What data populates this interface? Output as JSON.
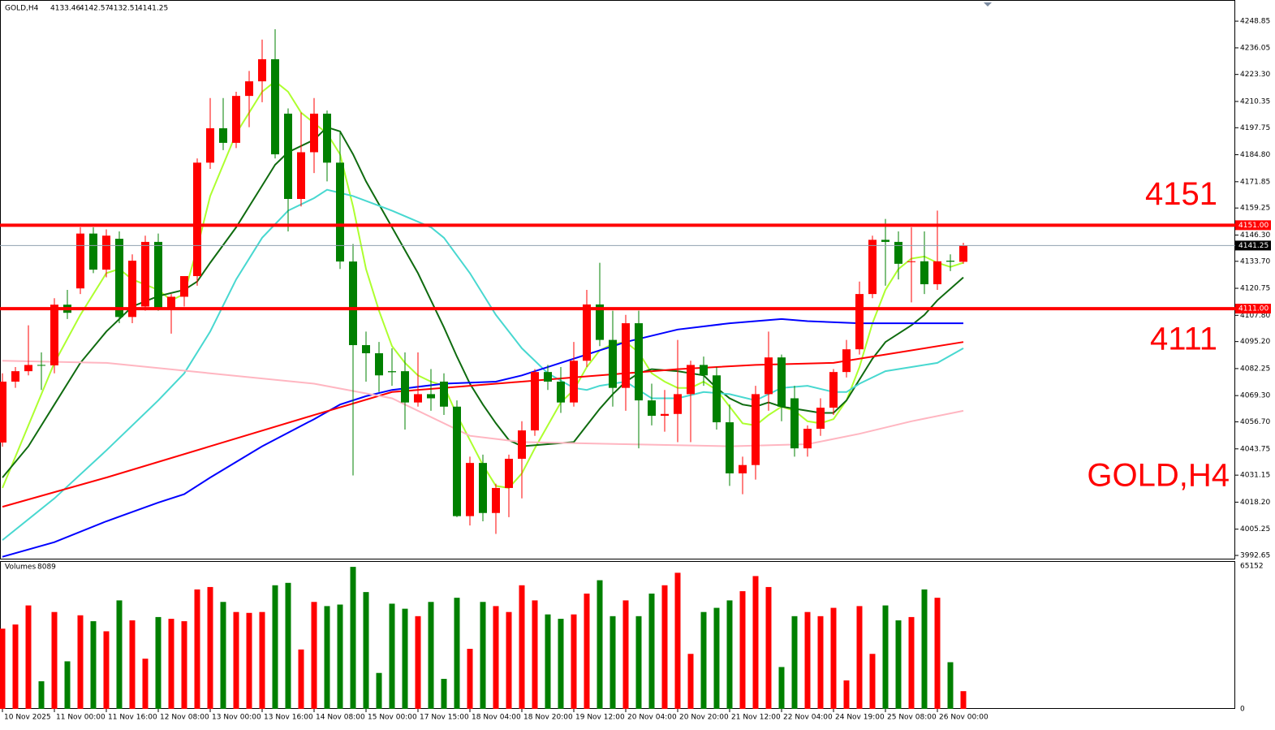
{
  "chart_data": {
    "type": "candlestick",
    "symbol": "GOLD,H4",
    "up_color": "#ff0000",
    "down_color": "#008000",
    "ylim": [
      3991.1,
      4259.0
    ],
    "yticks": [
      4248.85,
      4236.05,
      {
        "value": 4223.3,
        "label": "4223.30"
      },
      4210.35,
      4197.75,
      {
        "value": 4184.8,
        "label": "4184.80"
      },
      4171.85,
      4159.25,
      {
        "value": 4146.3,
        "label": "4146.30"
      },
      {
        "value": 4133.7,
        "label": "4133.70"
      },
      4120.75,
      {
        "value": 4107.8,
        "label": "4107.80"
      },
      {
        "value": 4095.2,
        "label": "4095.20"
      },
      4082.25,
      {
        "value": 4069.3,
        "label": "4069.30"
      },
      {
        "value": 4056.7,
        "label": "4056.70"
      },
      4043.75,
      4031.15,
      {
        "value": 4018.2,
        "label": "4018.20"
      },
      4005.25,
      3992.65
    ],
    "xticks": [
      {
        "value": 0,
        "label": "10 Nov 2025"
      },
      {
        "value": 4,
        "label": "11 Nov 00:00"
      },
      {
        "value": 8,
        "label": "11 Nov 16:00"
      },
      {
        "value": 12,
        "label": "12 Nov 08:00"
      },
      {
        "value": 16,
        "label": "13 Nov 00:00"
      },
      {
        "value": 20,
        "label": "13 Nov 16:00"
      },
      {
        "value": 24,
        "label": "14 Nov 08:00"
      },
      {
        "value": 28,
        "label": "15 Nov 00:00"
      },
      {
        "value": 32,
        "label": "17 Nov 15:00"
      },
      {
        "value": 36,
        "label": "18 Nov 04:00"
      },
      {
        "value": 40,
        "label": "18 Nov 20:00"
      },
      {
        "value": 44,
        "label": "19 Nov 12:00"
      },
      {
        "value": 48,
        "label": "20 Nov 04:00"
      },
      {
        "value": 52,
        "label": "20 Nov 20:00"
      },
      {
        "value": 56,
        "label": "21 Nov 12:00"
      },
      {
        "value": 60,
        "label": "22 Nov 04:00"
      },
      {
        "value": 64,
        "label": "24 Nov 19:00"
      },
      {
        "value": 68,
        "label": "25 Nov 08:00"
      },
      {
        "value": 72,
        "label": "26 Nov 00:00"
      }
    ],
    "candles": {
      "open": [
        4046.8,
        4076,
        4081,
        4084,
        4083.8,
        4112.9,
        4120.7,
        4147,
        4129.7,
        4144.5,
        4107,
        4112,
        4143,
        4111.5,
        4116.7,
        4126.6,
        4181,
        4197.5,
        4190.5,
        4213,
        4220,
        4230.6,
        4204.5,
        4163.6,
        4186,
        4204.5,
        4181,
        4133.6,
        4093.5,
        4089.6,
        4081,
        4081,
        4066,
        4070,
        4076,
        4064,
        4011.5,
        4037,
        4013,
        4025,
        4039,
        4052.6,
        4080.6,
        4076,
        4066,
        4086,
        4113,
        4096,
        4073,
        4104,
        4067,
        4059.6,
        4060.5,
        4070,
        4084,
        4079,
        4056.5,
        4032,
        4036,
        4070,
        4087.6,
        4068,
        4044,
        4053.4,
        4063.5,
        4080.6,
        4091.5,
        4118,
        4144,
        4143,
        4133.3,
        4133.7,
        4122.7,
        4134,
        4133.46
      ],
      "high": [
        4080,
        4083,
        4103,
        4090,
        4116,
        4120,
        4150,
        4150,
        4149,
        4148,
        4137,
        4146,
        4147,
        4118,
        4125,
        4183,
        4212,
        4212,
        4215,
        4225,
        4240,
        4245,
        4207,
        4205,
        4212,
        4206,
        4196,
        4142,
        4100,
        4095,
        4092,
        4090,
        4090,
        4082,
        4080,
        4067,
        4040,
        4041,
        4027,
        4041,
        4057,
        4082,
        4084,
        4083,
        4095,
        4120,
        4133,
        4110,
        4108,
        4110,
        4075,
        4072,
        4096,
        4086,
        4088,
        4083,
        4065,
        4040,
        4074,
        4100,
        4089,
        4074,
        4055,
        4068,
        4082,
        4096,
        4124,
        4146,
        4154,
        4148,
        4150,
        4148,
        4158,
        4137,
        4142.57
      ],
      "low": [
        4044.8,
        4073,
        4079,
        4072,
        4080,
        4106,
        4118,
        4128,
        4126,
        4104,
        4104,
        4110,
        4110,
        4099,
        4112,
        4122,
        4178,
        4187,
        4188,
        4198,
        4210,
        4183,
        4148,
        4160,
        4176,
        4172,
        4130,
        4031,
        4076,
        4071,
        4074,
        4053,
        4064,
        4062,
        4060,
        4011,
        4007,
        4009,
        4003,
        4011,
        4020,
        4050,
        4072,
        4061,
        4064,
        4083,
        4093,
        4064,
        4062,
        4044,
        4055,
        4052,
        4047,
        4047,
        4074,
        4053,
        4026,
        4022,
        4029,
        4062,
        4057,
        4040,
        4040,
        4050,
        4060,
        4078,
        4089,
        4116,
        4122,
        4125,
        4114,
        4118,
        4120,
        4129,
        4132.51
      ],
      "close": [
        4076,
        4081,
        4084,
        4083.8,
        4112.9,
        4109,
        4147,
        4129.7,
        4146,
        4107,
        4134,
        4143,
        4111.5,
        4116.7,
        4126.6,
        4181,
        4197.5,
        4190.5,
        4213,
        4220,
        4230.6,
        4185,
        4163.6,
        4186,
        4204.5,
        4181,
        4133.6,
        4093.5,
        4089.6,
        4079,
        4080.5,
        4066,
        4070,
        4068,
        4064,
        4011.5,
        4037,
        4013,
        4025,
        4039,
        4052.6,
        4080.6,
        4076,
        4066,
        4086,
        4113,
        4096,
        4073,
        4104,
        4067,
        4059.6,
        4060.5,
        4070,
        4084,
        4079,
        4056.5,
        4032,
        4036,
        4070,
        4087.6,
        4064,
        4044,
        4053.4,
        4063.5,
        4080.6,
        4091.5,
        4118,
        4144,
        4143,
        4132.5,
        4133.7,
        4122.7,
        4133.7,
        4133.5,
        4141.25
      ]
    },
    "moving_averages": [
      {
        "color": "#adff2f",
        "x": [
          0,
          2,
          4,
          6,
          8,
          9,
          10,
          12,
          13,
          14,
          15,
          16,
          17,
          18,
          19,
          20,
          21,
          22,
          23,
          24,
          25,
          26,
          27,
          28,
          29,
          30,
          31,
          32,
          33,
          34,
          35,
          36,
          37,
          38,
          39,
          40,
          41,
          42,
          43,
          44,
          45,
          46,
          47,
          48,
          49,
          50,
          51,
          52,
          53,
          54,
          55,
          56,
          57,
          58,
          59,
          60,
          61,
          62,
          63,
          64,
          65,
          66,
          67,
          68,
          69,
          70,
          71,
          72,
          73,
          74
        ],
        "values": [
          4025,
          4055,
          4085,
          4108,
          4128,
          4130,
          4125,
          4120,
          4115,
          4118,
          4140,
          4165,
          4180,
          4195,
          4205,
          4215,
          4220,
          4215,
          4205,
          4200,
          4195,
          4185,
          4160,
          4130,
          4110,
          4093,
          4085,
          4079,
          4076,
          4074,
          4060,
          4048,
          4036,
          4026,
          4025,
          4032,
          4044,
          4055,
          4066,
          4072,
          4083,
          4091,
          4094,
          4095,
          4090,
          4080,
          4076,
          4073,
          4073,
          4076,
          4072,
          4064,
          4056,
          4055,
          4060,
          4064,
          4062,
          4057,
          4056,
          4058,
          4067,
          4083,
          4104,
          4120,
          4130,
          4135,
          4136,
          4133,
          4131,
          4133
        ]
      },
      {
        "color": "#0f6b0f",
        "x": [
          0,
          2,
          4,
          6,
          8,
          10,
          12,
          14,
          15,
          16,
          18,
          20,
          21,
          22,
          24,
          25,
          26,
          27,
          28,
          30,
          32,
          33,
          34,
          35,
          36,
          37,
          38,
          39,
          40,
          42,
          44,
          45,
          46,
          47,
          48,
          49,
          50,
          52,
          53,
          54,
          55,
          56,
          57,
          58,
          59,
          60,
          62,
          63,
          64,
          65,
          66,
          67,
          68,
          70,
          71,
          72,
          74
        ],
        "values": [
          4030,
          4045,
          4065,
          4085,
          4100,
          4112,
          4117,
          4120,
          4124,
          4133,
          4150,
          4170,
          4180,
          4186,
          4192,
          4198,
          4196,
          4185,
          4172,
          4150,
          4128,
          4115,
          4102,
          4088,
          4075,
          4065,
          4056,
          4048,
          4045,
          4046,
          4047,
          4055,
          4063,
          4070,
          4076,
          4080,
          4082,
          4081,
          4080,
          4079,
          4073,
          4068,
          4065,
          4064,
          4066,
          4064,
          4062,
          4061,
          4061,
          4067,
          4077,
          4087,
          4095,
          4103,
          4108,
          4115,
          4126
        ]
      },
      {
        "color": "#48d8d0",
        "x": [
          0,
          4,
          8,
          12,
          14,
          16,
          18,
          20,
          22,
          24,
          25,
          27,
          30,
          33,
          34,
          36,
          38,
          40,
          42,
          44,
          45,
          46,
          48,
          50,
          52,
          54,
          56,
          58,
          60,
          62,
          64,
          65,
          66,
          68,
          70,
          72,
          74
        ],
        "values": [
          4000,
          4020,
          4043,
          4067,
          4080,
          4100,
          4125,
          4145,
          4158,
          4164,
          4168,
          4165,
          4158,
          4150,
          4145,
          4128,
          4108,
          4092,
          4080,
          4073,
          4072,
          4074,
          4076,
          4068,
          4068,
          4071,
          4070,
          4067,
          4073,
          4074,
          4071,
          4071,
          4075,
          4081,
          4083,
          4085,
          4092
        ]
      },
      {
        "color": "#0000ff",
        "x": [
          0,
          4,
          8,
          12,
          14,
          16,
          20,
          24,
          26,
          28,
          30,
          34,
          38,
          40,
          44,
          48,
          52,
          56,
          58,
          60,
          62,
          66,
          70,
          74
        ],
        "values": [
          3992,
          3999,
          4009,
          4018,
          4022,
          4030,
          4045,
          4058,
          4065,
          4069,
          4072,
          4075,
          4076,
          4079,
          4087,
          4095,
          4101,
          4104,
          4105,
          4106,
          4105,
          4104,
          4104,
          4104
        ]
      },
      {
        "color": "#ff0000",
        "x": [
          0,
          8,
          16,
          24,
          30,
          36,
          40,
          44,
          48,
          52,
          58,
          64,
          68,
          74
        ],
        "values": [
          4016,
          4030,
          4045,
          4060,
          4071,
          4074,
          4076,
          4078,
          4080,
          4082,
          4084,
          4085,
          4089,
          4095
        ]
      },
      {
        "color": "#ffb6c1",
        "x": [
          0,
          8,
          16,
          24,
          30,
          36,
          40,
          48,
          56,
          62,
          66,
          70,
          74
        ],
        "values": [
          4086,
          4085,
          4080,
          4075,
          4068,
          4050,
          4047,
          4046,
          4045,
          4046,
          4051,
          4057,
          4062
        ]
      }
    ],
    "levels": [
      {
        "value": 4151,
        "label": "4151.00",
        "color": "#ff0000"
      },
      {
        "value": 4111,
        "label": "4111.00",
        "color": "#ff0000"
      }
    ],
    "volume_title": "Volumes",
    "volume_ylim": [
      0,
      67057
    ],
    "volume_yticks": [
      0,
      65152
    ],
    "volume": [
      36600,
      38500,
      47200,
      12600,
      44200,
      21700,
      42700,
      40000,
      35400,
      49500,
      40400,
      22900,
      41900,
      41100,
      40000,
      54500,
      55600,
      48800,
      44200,
      43800,
      44200,
      56400,
      57500,
      27100,
      48800,
      46900,
      47600,
      64800,
      53300,
      16400,
      48000,
      45700,
      42300,
      48800,
      13700,
      50700,
      27400,
      48800,
      46900,
      44200,
      56400,
      49500,
      43100,
      41100,
      43100,
      52600,
      58700,
      42300,
      49500,
      42300,
      52600,
      56400,
      62100,
      25100,
      44200,
      46100,
      49500,
      53700,
      60600,
      55600,
      19100,
      42300,
      44200,
      42300,
      46100,
      13000,
      46900,
      25100,
      47200,
      40400,
      41900,
      54500,
      50700,
      21300,
      8089
    ]
  }
}
